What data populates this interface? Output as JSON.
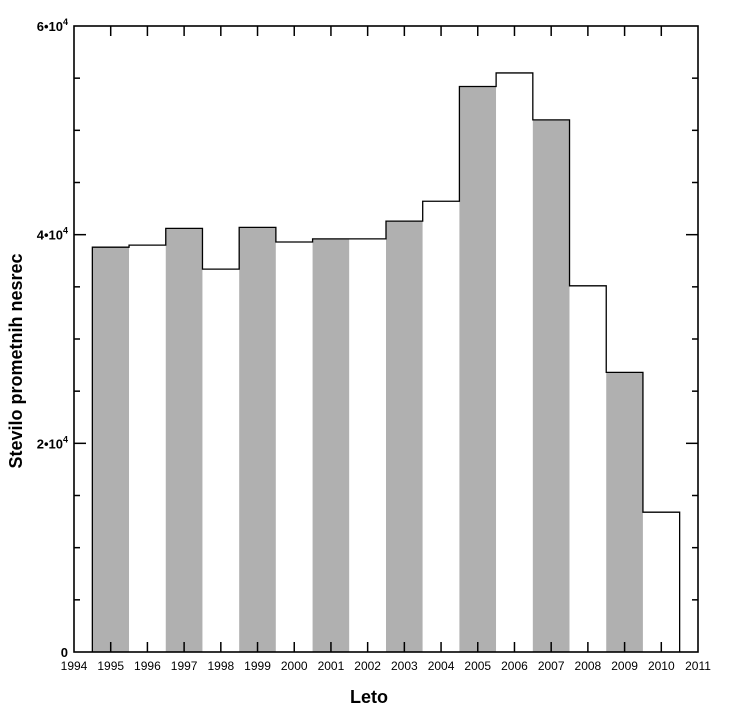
{
  "chart_data": {
    "type": "bar",
    "title": "",
    "xlabel": "Leto",
    "ylabel": "Stevilo prometnih nesrec",
    "ylim": [
      0,
      60000
    ],
    "x_tick_labels": [
      "1994",
      "1995",
      "1996",
      "1997",
      "1998",
      "1999",
      "2000",
      "2001",
      "2002",
      "2003",
      "2004",
      "2005",
      "2006",
      "2007",
      "2008",
      "2009",
      "2010",
      "2011"
    ],
    "y_ticks": [
      {
        "value": 0,
        "label": "0",
        "base": "",
        "exp": ""
      },
      {
        "value": 20000,
        "label": "2·10⁴",
        "base": "2•10",
        "exp": "4"
      },
      {
        "value": 40000,
        "label": "4·10⁴",
        "base": "4•10",
        "exp": "4"
      },
      {
        "value": 60000,
        "label": "6·10⁴",
        "base": "6•10",
        "exp": "4"
      }
    ],
    "categories": [
      "1995",
      "1996",
      "1997",
      "1998",
      "1999",
      "2000",
      "2001",
      "2002",
      "2003",
      "2004",
      "2005",
      "2006",
      "2007",
      "2008",
      "2009",
      "2010"
    ],
    "values": [
      38800,
      39000,
      40600,
      36700,
      40700,
      39300,
      39600,
      39600,
      41300,
      43200,
      54200,
      55500,
      51000,
      35100,
      26800,
      13400
    ],
    "fill_pattern": [
      "#b0b0b0",
      "#ffffff"
    ],
    "grid": false,
    "legend": "none"
  }
}
